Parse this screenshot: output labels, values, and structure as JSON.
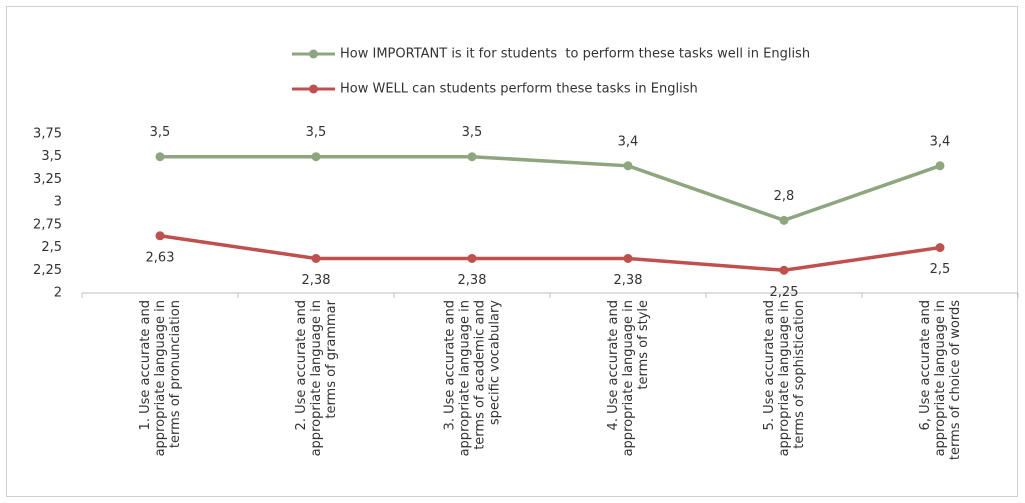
{
  "chart_data": {
    "type": "line",
    "categories": [
      "1. Use accurate and appropriate language in terms of pronunciation",
      "2. Use accurate and appropriate language in terms of grammar",
      "3. Use accurate and appropriate language in terms of academic and specific vocabulary",
      "4. Use accurate and appropriate language in terms of style",
      "5. Use accurate and appropriate language in terms of sophistication",
      "6, Use accurate and appropriate language in terms of choice of words"
    ],
    "series": [
      {
        "name": "How IMPORTANT is it for students  to perform these tasks well in English",
        "color": "#8ea67f",
        "values": [
          3.5,
          3.5,
          3.5,
          3.4,
          2.8,
          3.4
        ],
        "value_labels": [
          "3,5",
          "3,5",
          "3,5",
          "3,4",
          "2,8",
          "3,4"
        ]
      },
      {
        "name": "How WELL can students perform these tasks in English",
        "color": "#c0504d",
        "values": [
          2.63,
          2.38,
          2.38,
          2.38,
          2.25,
          2.5
        ],
        "value_labels": [
          "2,63",
          "2,38",
          "2,38",
          "2,38",
          "2,25",
          "2,5"
        ]
      }
    ],
    "ylim": [
      2,
      3.75
    ],
    "yticks": [
      2,
      {
        "value": 2.25,
        "label": "2,25"
      },
      {
        "value": 2.5,
        "label": "2,5"
      },
      {
        "value": 2.75,
        "label": "2,75"
      },
      3,
      {
        "value": 3.25,
        "label": "3,25"
      },
      {
        "value": 3.5,
        "label": "3,5"
      },
      {
        "value": 3.75,
        "label": "3,75"
      }
    ],
    "grid": false,
    "legend": "top"
  }
}
